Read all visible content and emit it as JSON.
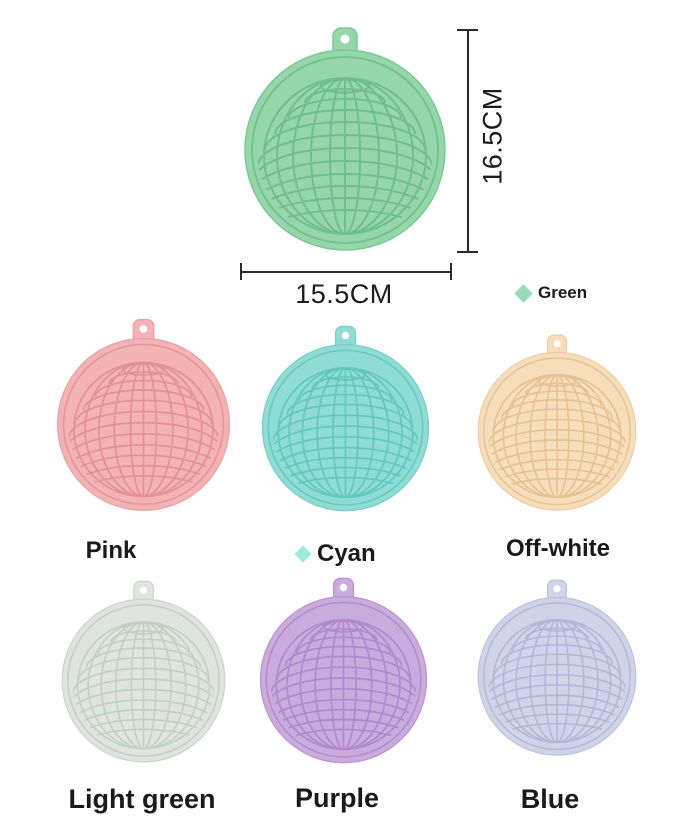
{
  "page": {
    "background": "#ffffff"
  },
  "hero": {
    "height_label": "16.5CM",
    "width_label": "15.5CM",
    "legend": {
      "label": "Green",
      "swatch_color": "#98dcb6"
    },
    "mat": {
      "name": "Green",
      "body": "#95d7a8",
      "line": "#6dbd8c",
      "rim": "#7ac897"
    }
  },
  "variants": [
    {
      "name": "Pink",
      "body": "#f3b2b4",
      "line": "#e18f95",
      "rim": "#eba1a5"
    },
    {
      "name": "Cyan",
      "body": "#8edcd3",
      "line": "#5fc7ba",
      "rim": "#77d0c5",
      "swatch_color": "#9ce9de"
    },
    {
      "name": "Off-white",
      "body": "#f6deba",
      "line": "#e3bf8f",
      "rim": "#eccda1"
    },
    {
      "name": "Light green",
      "body": "#dfe5de",
      "line": "#c0cec1",
      "rim": "#cbd5ca"
    },
    {
      "name": "Purple",
      "body": "#c9abdd",
      "line": "#af86c9",
      "rim": "#b995d1"
    },
    {
      "name": "Blue",
      "body": "#cfd4e9",
      "line": "#aeb6d6",
      "rim": "#bcc2de"
    }
  ]
}
